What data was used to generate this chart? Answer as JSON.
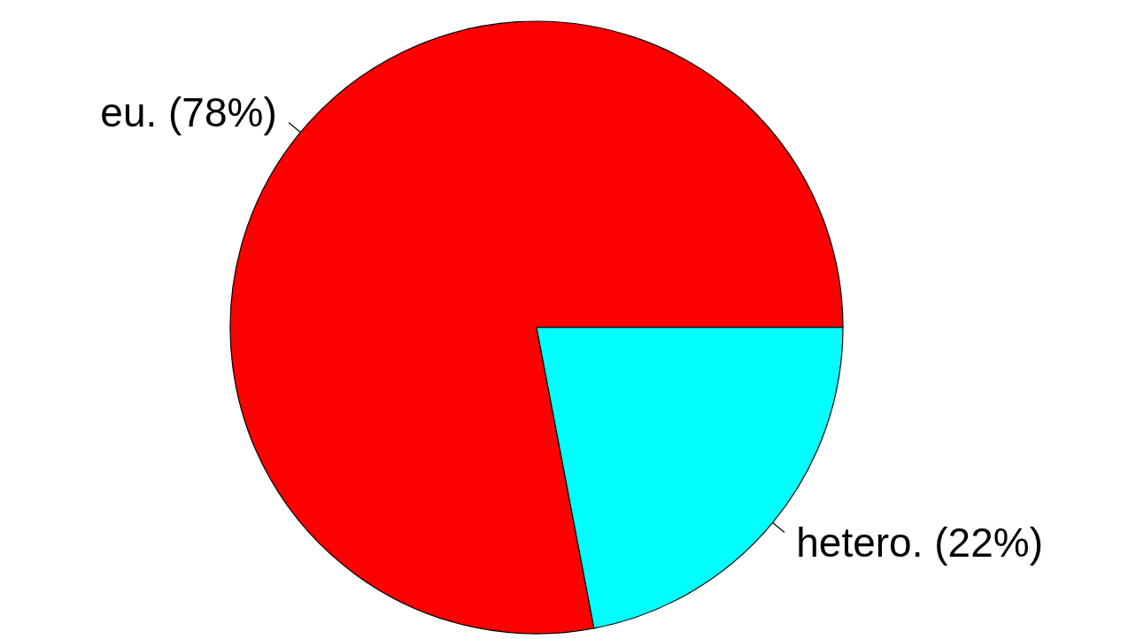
{
  "chart_data": {
    "type": "pie",
    "categories": [
      "eu. (78%)",
      "hetero. (22%)"
    ],
    "values": [
      78,
      22
    ],
    "colors": [
      "#ff0000",
      "#00ffff"
    ]
  }
}
